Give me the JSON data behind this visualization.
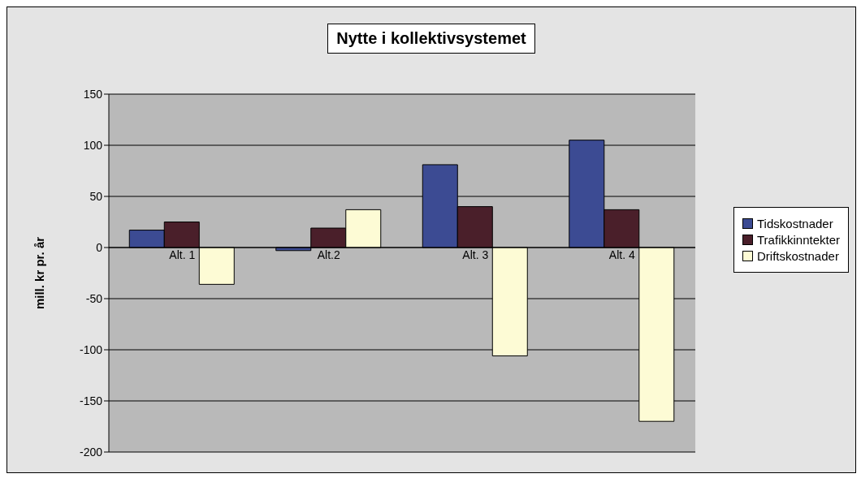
{
  "chart_data": {
    "type": "bar",
    "title": "Nytte i kollektivsystemet",
    "ylabel": "mill. kr pr. år",
    "categories": [
      "Alt. 1",
      "Alt.2",
      "Alt. 3",
      "Alt. 4"
    ],
    "series": [
      {
        "name": "Tidskostnader",
        "color": "#3c4b93",
        "values": [
          17,
          -3,
          81,
          105
        ]
      },
      {
        "name": "Trafikkinntekter",
        "color": "#4a1f2a",
        "values": [
          25,
          19,
          40,
          37
        ]
      },
      {
        "name": "Driftskostnader",
        "color": "#fdfbd5",
        "values": [
          -36,
          37,
          -106,
          -170
        ]
      }
    ],
    "ylim": [
      -200,
      150
    ],
    "yticks": [
      -200,
      -150,
      -100,
      -50,
      0,
      50,
      100,
      150
    ],
    "grid": "y",
    "legend": "right"
  }
}
